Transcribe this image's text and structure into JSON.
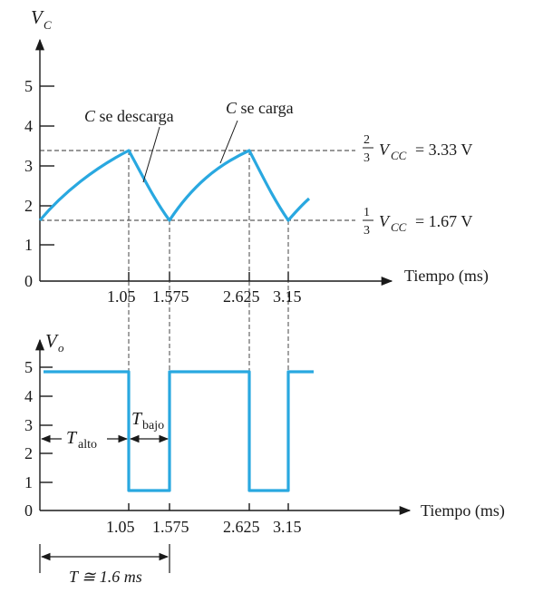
{
  "top_plot": {
    "y_axis_label": "V",
    "y_axis_label_sub": "C",
    "y_ticks": [
      "5",
      "4",
      "3",
      "2",
      "1",
      "0"
    ],
    "x_axis_label": "Tiempo (ms)",
    "x_ticks": [
      "1.05",
      "1.575",
      "2.625",
      "3.15"
    ],
    "annotation_discharge": "se descarga",
    "annotation_charge": "se carga",
    "annotation_var": "C",
    "upper_threshold_num": "2",
    "upper_threshold_den": "3",
    "upper_threshold_var": "V",
    "upper_threshold_sub": "CC",
    "upper_threshold_value": "= 3.33 V",
    "lower_threshold_num": "1",
    "lower_threshold_den": "3",
    "lower_threshold_var": "V",
    "lower_threshold_sub": "CC",
    "lower_threshold_value": "= 1.67 V"
  },
  "bottom_plot": {
    "y_axis_label": "V",
    "y_axis_label_sub": "o",
    "y_ticks": [
      "5",
      "4",
      "3",
      "2",
      "1",
      "0"
    ],
    "x_axis_label": "Tiempo (ms)",
    "x_ticks": [
      "1.05",
      "1.575",
      "2.625",
      "3.15"
    ],
    "t_high_var": "T",
    "t_high_sub": "alto",
    "t_low_var": "T",
    "t_low_sub": "bajo",
    "period_label": "T ≅ 1.6 ms"
  },
  "colors": {
    "waveform": "#29a8e0",
    "axes": "#1a1a1a"
  },
  "chart_data": [
    {
      "type": "line",
      "name": "capacitor voltage",
      "x": [
        0,
        1.05,
        1.575,
        2.625,
        3.15,
        3.4
      ],
      "y": [
        1.67,
        3.33,
        1.67,
        3.33,
        1.67,
        2.1
      ],
      "ylim": [
        0,
        5.5
      ],
      "thresholds": [
        3.33,
        1.67
      ],
      "xlabel": "Tiempo (ms)",
      "ylabel": "VC"
    },
    {
      "type": "line",
      "name": "output voltage",
      "x": [
        0,
        1.05,
        1.05,
        1.575,
        1.575,
        2.625,
        2.625,
        3.15,
        3.15,
        3.4
      ],
      "y": [
        4.9,
        4.9,
        0.7,
        0.7,
        4.9,
        4.9,
        0.7,
        0.7,
        4.9,
        4.9
      ],
      "ylim": [
        0,
        5.5
      ],
      "xlabel": "Tiempo (ms)",
      "ylabel": "Vo"
    }
  ]
}
